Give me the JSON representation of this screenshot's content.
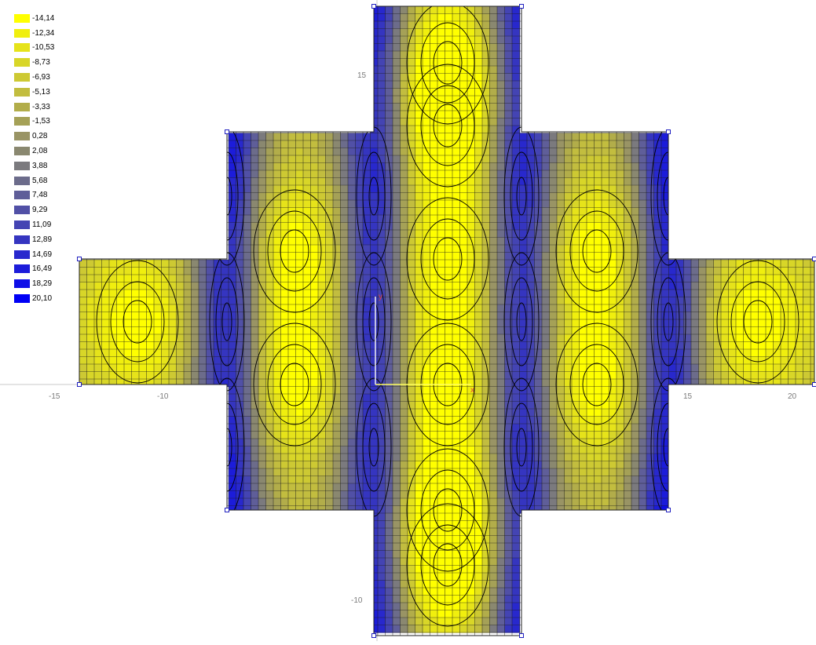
{
  "legend": {
    "entries": [
      {
        "label": "-14,14",
        "color": "#ffff00"
      },
      {
        "label": "-12,34",
        "color": "#f0ef0e"
      },
      {
        "label": "-10,53",
        "color": "#e6e31a"
      },
      {
        "label": "-8,73",
        "color": "#d8d628"
      },
      {
        "label": "-6,93",
        "color": "#cdc933"
      },
      {
        "label": "-5,13",
        "color": "#c2bd3f"
      },
      {
        "label": "-3,33",
        "color": "#b2ad4a"
      },
      {
        "label": "-1,53",
        "color": "#a5a157"
      },
      {
        "label": "0,28",
        "color": "#999465"
      },
      {
        "label": "2,08",
        "color": "#8a8870"
      },
      {
        "label": "3,88",
        "color": "#7b7a7e"
      },
      {
        "label": "5,68",
        "color": "#6c6c8b"
      },
      {
        "label": "7,48",
        "color": "#5f5e99"
      },
      {
        "label": "9,29",
        "color": "#5150a6"
      },
      {
        "label": "11,09",
        "color": "#4444b3"
      },
      {
        "label": "12,89",
        "color": "#3535c0"
      },
      {
        "label": "14,69",
        "color": "#2828cd"
      },
      {
        "label": "16,49",
        "color": "#1c1cda"
      },
      {
        "label": "18,29",
        "color": "#0e0ee7"
      },
      {
        "label": "20,10",
        "color": "#0000f5"
      }
    ]
  },
  "axes": {
    "x_ticks": [
      "-15",
      "-10",
      "15",
      "20"
    ],
    "y_ticks": [
      "15",
      "-10"
    ]
  },
  "colors": {
    "background": "#ffffff",
    "mesh_line": "#1a1a1a",
    "support_node": "#2020c0",
    "local_x_axis": "#ffff40",
    "local_y_axis": "#ffffff",
    "axis_marker": "#e04040"
  }
}
